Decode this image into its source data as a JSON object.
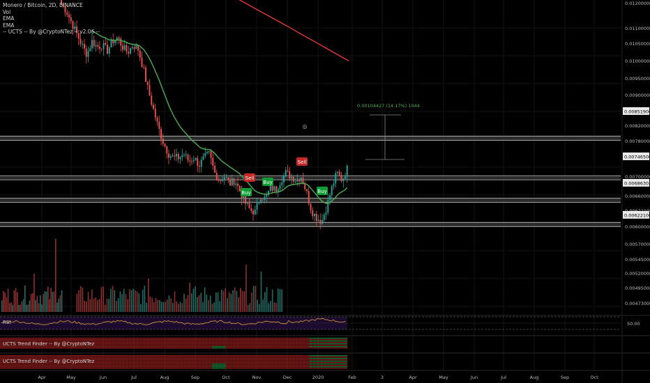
{
  "legend": {
    "symbol": "Monero / Bitcoin, 2D, BINANCE",
    "vol": "Vol",
    "ema1": "EMA",
    "ema2": "EMA",
    "ucts": "-- UCTS -- By @CryptoNTez -- v2.06 --"
  },
  "panes": {
    "rsi_label": "RSI",
    "rsi_level": "50.00",
    "trend1_label": "UCTS Trend Finder -- By @CryptoNTez",
    "trend2_label": "UCTS Trend Finder -- By @CryptoNTez"
  },
  "measure": {
    "text": "0.00104427 (14.17%) 1044"
  },
  "signals": [
    {
      "label": "Sell",
      "type": "sell"
    },
    {
      "label": "Buy",
      "type": "buy"
    },
    {
      "label": "Buy",
      "type": "buy"
    },
    {
      "label": "Sell",
      "type": "sell"
    },
    {
      "label": "Buy",
      "type": "buy"
    }
  ],
  "colors": {
    "up": "#26a69a",
    "down": "#ef5350",
    "ema_fast": "#4caf50",
    "ema_slow": "#e53935",
    "buy": "#0f9d34",
    "sell": "#c62828",
    "rsi_line": "#e0a040",
    "rsi_bg": "#1c0b2e"
  },
  "chart_data": {
    "type": "candlestick",
    "xaxis_labels": [
      "Apr",
      "May",
      "Jun",
      "Jul",
      "Aug",
      "Sep",
      "Oct",
      "Nov",
      "Dec",
      "2020",
      "Feb",
      "3",
      "Apr",
      "May",
      "Jun",
      "Jul",
      "Aug",
      "Sep",
      "Oct"
    ],
    "price_tick_labels": [
      "0.01200000",
      "0.01100000",
      "0.01050000",
      "0.01000000",
      "0.00950000",
      "0.00900000",
      "0.00820000",
      "0.00780000",
      "0.00700000",
      "0.00660000",
      "0.00622100",
      "0.00600000",
      "0.00570000",
      "0.00545000",
      "0.00520000",
      "0.00495000",
      "0.00473000"
    ],
    "highlighted_price_labels": [
      "0.00851900",
      "0.00746500",
      "0.00686301",
      "0.00622100"
    ],
    "horizontal_levels": [
      0.008519,
      0.007465,
      0.006863,
      0.006221
    ],
    "price_range": [
      0.0058,
      0.0122
    ],
    "close_path": [
      0.0121,
      0.0119,
      0.0116,
      0.0113,
      0.011,
      0.01075,
      0.0111,
      0.01095,
      0.011,
      0.01085,
      0.0111,
      0.0112,
      0.01095,
      0.0108,
      0.011,
      0.0109,
      0.0104,
      0.0098,
      0.0093,
      0.0088,
      0.0084,
      0.0081,
      0.008,
      0.008,
      0.0081,
      0.0079,
      0.008,
      0.0078,
      0.008,
      0.0081,
      0.0076,
      0.0074,
      0.0075,
      0.0073,
      0.0074,
      0.0071,
      0.0068,
      0.0066,
      0.00655,
      0.007,
      0.0069,
      0.0072,
      0.00715,
      0.0074,
      0.0076,
      0.0075,
      0.0074,
      0.0075,
      0.0071,
      0.0066,
      0.0064,
      0.0063,
      0.0067,
      0.0072,
      0.0076,
      0.0074,
      0.0077
    ],
    "ema_fast_label": "EMA",
    "ema_slow_label": "EMA",
    "rsi_level": 50
  }
}
